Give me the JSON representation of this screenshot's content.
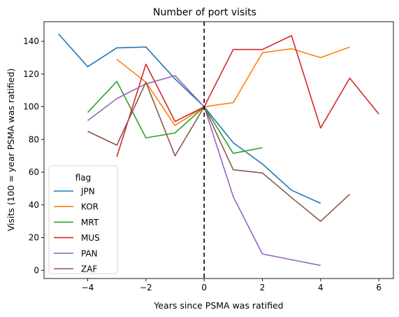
{
  "chart_data": {
    "type": "line",
    "title": "Number of port visits",
    "xlabel": "Years since PSMA was ratified",
    "ylabel": "Visits (100 = year PSMA was ratified)",
    "xlim": [
      -5.5,
      6.5
    ],
    "ylim": [
      -5,
      152
    ],
    "xticks": [
      -4,
      -2,
      0,
      2,
      4,
      6
    ],
    "xtick_labels": [
      "−4",
      "−2",
      "0",
      "2",
      "4",
      "6"
    ],
    "yticks": [
      0,
      20,
      40,
      60,
      80,
      100,
      120,
      140
    ],
    "ytick_labels": [
      "0",
      "20",
      "40",
      "60",
      "80",
      "100",
      "120",
      "140"
    ],
    "grid": false,
    "vline": {
      "x": 0,
      "style": "dashed",
      "color": "#000000"
    },
    "legend": {
      "title": "flag",
      "placement": "lower-left"
    },
    "series": [
      {
        "name": "JPN",
        "color": "#1f77b4",
        "x": [
          -5,
          -4,
          -3,
          -2,
          -1,
          0,
          1,
          2,
          3,
          4
        ],
        "y": [
          144.5,
          124.5,
          136,
          136.5,
          117,
          100,
          78,
          65,
          49,
          41
        ]
      },
      {
        "name": "KOR",
        "color": "#ff7f0e",
        "x": [
          -3,
          -2,
          -1,
          0,
          1,
          2,
          3,
          4,
          5
        ],
        "y": [
          129,
          115,
          88.5,
          100,
          102.5,
          133,
          135.5,
          130,
          136.5
        ]
      },
      {
        "name": "MRT",
        "color": "#2ca02c",
        "x": [
          -4,
          -3,
          -2,
          -1,
          0,
          1,
          2
        ],
        "y": [
          96.5,
          115.5,
          81,
          84,
          100,
          71.5,
          75
        ]
      },
      {
        "name": "MUS",
        "color": "#d62728",
        "x": [
          -3,
          -2,
          -1,
          0,
          1,
          2,
          3,
          4,
          5,
          6
        ],
        "y": [
          69.5,
          126,
          91,
          100,
          135,
          135,
          143.5,
          87,
          117.5,
          95.5
        ]
      },
      {
        "name": "PAN",
        "color": "#9467bd",
        "x": [
          -4,
          -3,
          -2,
          -1,
          0,
          1,
          2,
          3,
          4
        ],
        "y": [
          91.5,
          105,
          114,
          119,
          100,
          45,
          10,
          6.5,
          3
        ]
      },
      {
        "name": "ZAF",
        "color": "#8c564b",
        "x": [
          -4,
          -3,
          -2,
          -1,
          0,
          1,
          2,
          3,
          4,
          5
        ],
        "y": [
          85,
          76.5,
          115,
          70,
          100,
          61.5,
          59.5,
          44.5,
          30,
          46.5
        ]
      }
    ]
  }
}
